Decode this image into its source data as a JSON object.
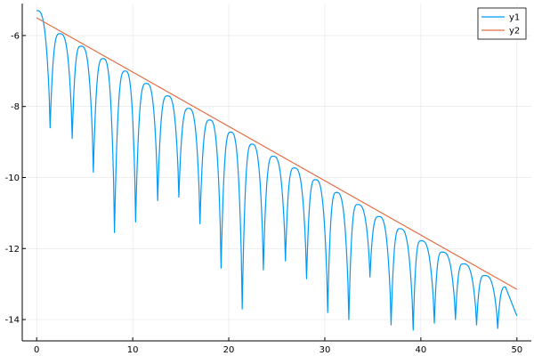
{
  "chart_data": {
    "type": "line",
    "title": "",
    "xlabel": "",
    "ylabel": "",
    "xlim": [
      -1.5,
      51.5
    ],
    "ylim": [
      -14.6,
      -5.1
    ],
    "xticks": [
      0,
      10,
      20,
      30,
      40,
      50
    ],
    "yticks": [
      -14,
      -12,
      -10,
      -8,
      -6
    ],
    "grid": true,
    "legend_position": "top-right",
    "series": [
      {
        "name": "y1",
        "color": "#009af9",
        "description": "oscillating log-magnitude decaying signal",
        "peak_x": [
          0,
          2.4,
          4.6,
          6.9,
          9.2,
          11.4,
          13.6,
          15.8,
          18.0,
          20.2,
          22.4,
          24.6,
          26.8,
          29.0,
          31.2,
          33.4,
          35.6,
          37.8,
          40.0,
          42.2,
          44.4,
          46.6,
          48.8
        ],
        "peak_y": [
          -5.3,
          -5.95,
          -6.3,
          -6.65,
          -7.0,
          -7.35,
          -7.7,
          -8.05,
          -8.38,
          -8.72,
          -9.06,
          -9.4,
          -9.73,
          -10.06,
          -10.42,
          -10.76,
          -11.1,
          -11.44,
          -11.78,
          -12.1,
          -12.43,
          -12.76,
          -13.08
        ],
        "trough_x": [
          1.4,
          3.7,
          5.9,
          8.1,
          10.3,
          12.6,
          14.8,
          17.0,
          19.2,
          21.4,
          23.6,
          25.9,
          28.1,
          30.3,
          32.5,
          34.7,
          36.9,
          39.2,
          41.4,
          43.6,
          45.8,
          48.0
        ],
        "trough_y": [
          -8.6,
          -8.9,
          -9.85,
          -11.55,
          -11.25,
          -10.65,
          -10.55,
          -11.3,
          -12.55,
          -13.7,
          -12.6,
          -12.35,
          -12.85,
          -13.8,
          -14.0,
          -12.8,
          -14.15,
          -14.3,
          -14.1,
          -14.0,
          -14.15,
          -14.25
        ],
        "x_end": 50,
        "y_end": -13.9
      },
      {
        "name": "y2",
        "color": "#e26f46",
        "x": [
          0,
          50
        ],
        "y": [
          -5.5,
          -13.15
        ]
      }
    ]
  }
}
